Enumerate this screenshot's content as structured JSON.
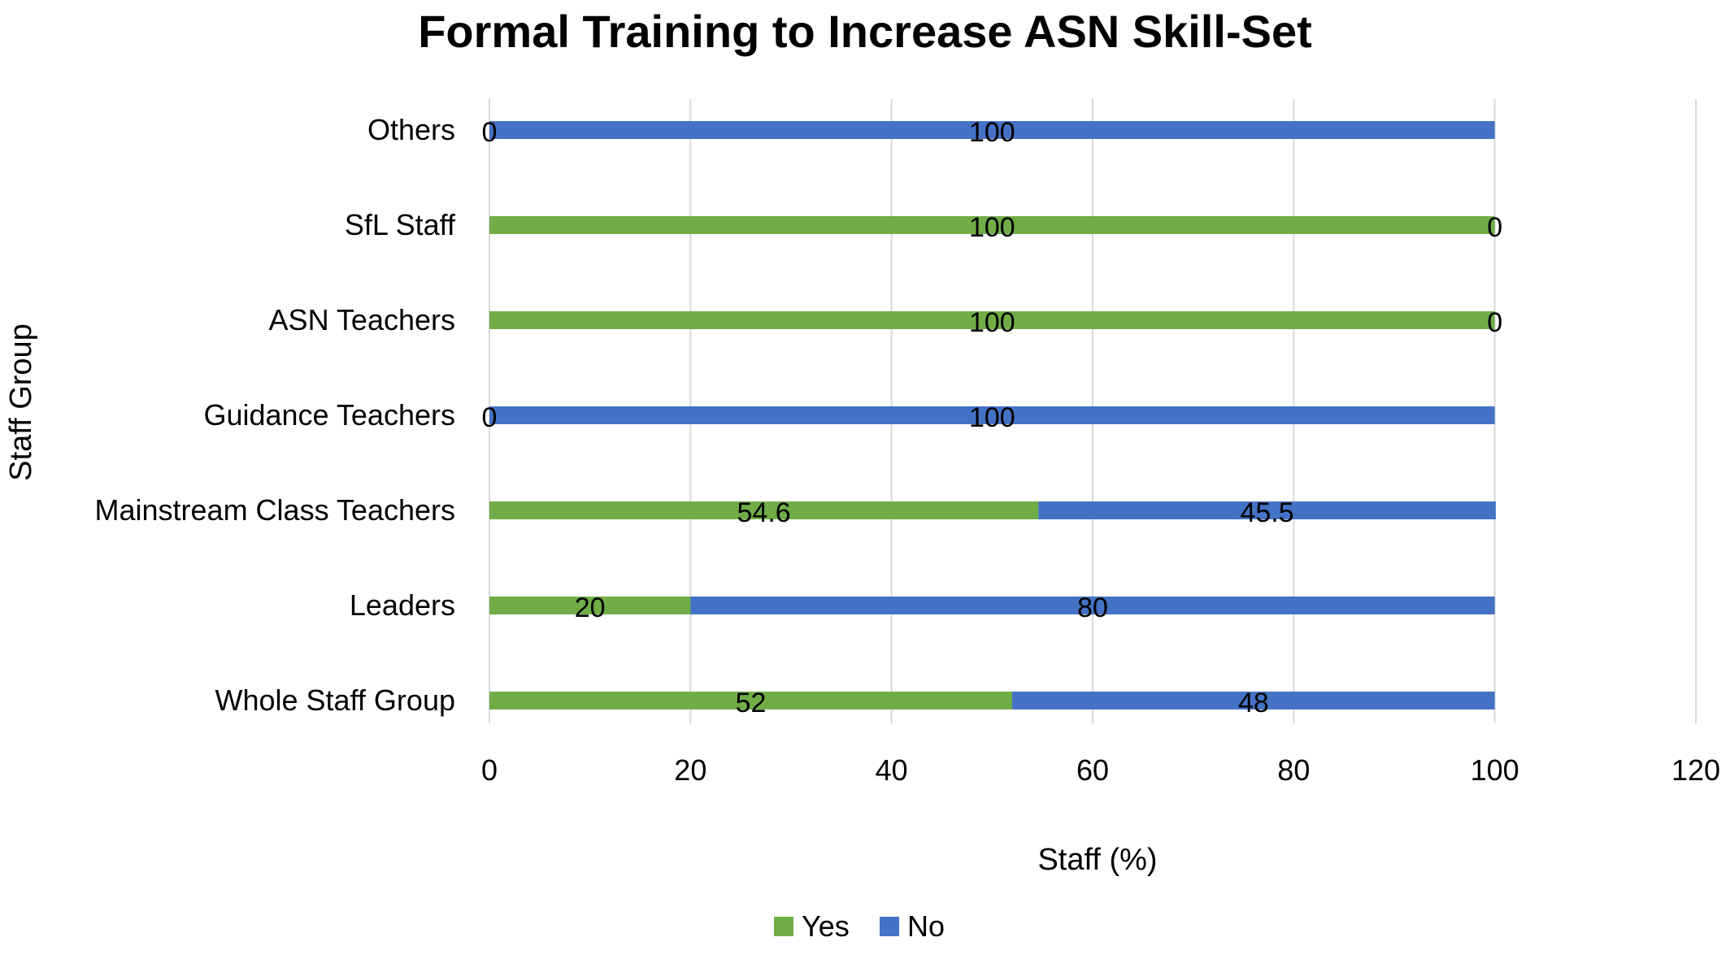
{
  "chart_data": {
    "type": "bar",
    "orientation": "horizontal",
    "stacked": true,
    "title": "Formal Training to Increase ASN Skill-Set",
    "xlabel": "Staff (%)",
    "ylabel": "Staff Group",
    "xlim": [
      0,
      120
    ],
    "x_ticks": [
      0,
      20,
      40,
      60,
      80,
      100,
      120
    ],
    "grid": true,
    "legend_position": "bottom",
    "categories": [
      "Whole Staff Group",
      "Leaders",
      "Mainstream Class Teachers",
      "Guidance Teachers",
      "ASN Teachers",
      "SfL Staff",
      "Others"
    ],
    "series": [
      {
        "name": "Yes",
        "color": "#70ad47",
        "values": [
          52,
          20,
          54.6,
          0,
          100,
          100,
          0
        ],
        "labels": [
          "52",
          "20",
          "54.6",
          "0",
          "100",
          "100",
          "0"
        ]
      },
      {
        "name": "No",
        "color": "#4472c4",
        "values": [
          48,
          80,
          45.5,
          100,
          0,
          0,
          100
        ],
        "labels": [
          "48",
          "80",
          "45.5",
          "100",
          "0",
          "0",
          "100"
        ]
      }
    ]
  }
}
